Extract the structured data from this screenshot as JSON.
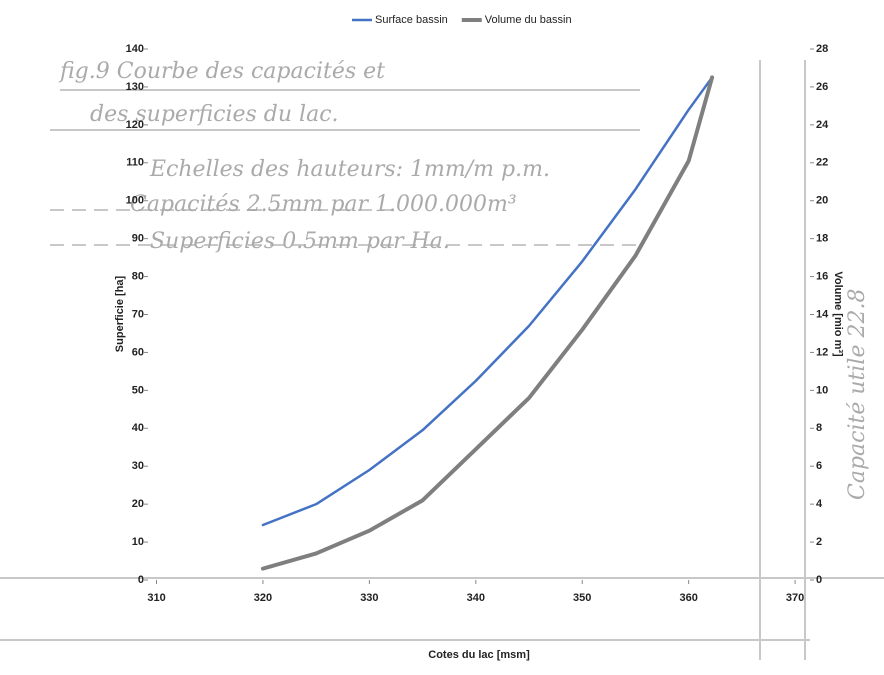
{
  "chart_data": {
    "type": "line",
    "x_label": "Cotes du lac [msm]",
    "y_label": "Superficie [ha]",
    "y2_label": "Volume [mio m³]",
    "xlim": [
      309.2,
      371.4
    ],
    "xticks": [
      310,
      320,
      330,
      340,
      350,
      360,
      370
    ],
    "ylim": [
      0,
      140
    ],
    "yticks": [
      0,
      10,
      20,
      30,
      40,
      50,
      60,
      70,
      80,
      90,
      100,
      110,
      120,
      130,
      140
    ],
    "y2lim": [
      0,
      28
    ],
    "y2ticks": [
      0,
      2,
      4,
      6,
      8,
      10,
      12,
      14,
      16,
      18,
      20,
      22,
      24,
      26,
      28
    ],
    "legend": "top",
    "x": [
      320,
      325,
      330,
      335,
      340,
      345,
      350,
      355,
      360,
      362.2
    ],
    "series": [
      {
        "name": "Surface bassin",
        "color": "#4472c4",
        "width": 2.5,
        "values": [
          14.5,
          20,
          29,
          39.5,
          52.5,
          67,
          84,
          103,
          124,
          132.5
        ]
      },
      {
        "name": "Volume du bassin",
        "color": "#7f7f7f",
        "width": 4,
        "axis": "y2",
        "values": [
          0.6,
          1.4,
          2.6,
          4.2,
          6.9,
          9.6,
          13.2,
          17.1,
          22.1,
          26.5
        ]
      }
    ],
    "annotations": [
      "fig.9 Courbe des capacités et",
      "des superficies du lac.",
      "Echelles des hauteurs: 1mm/m p.m.",
      "Capacités 2.5mm par 1.000.000m³",
      "Superficies 0.5mm par Ha.",
      "Capacité utile 22.8"
    ]
  }
}
